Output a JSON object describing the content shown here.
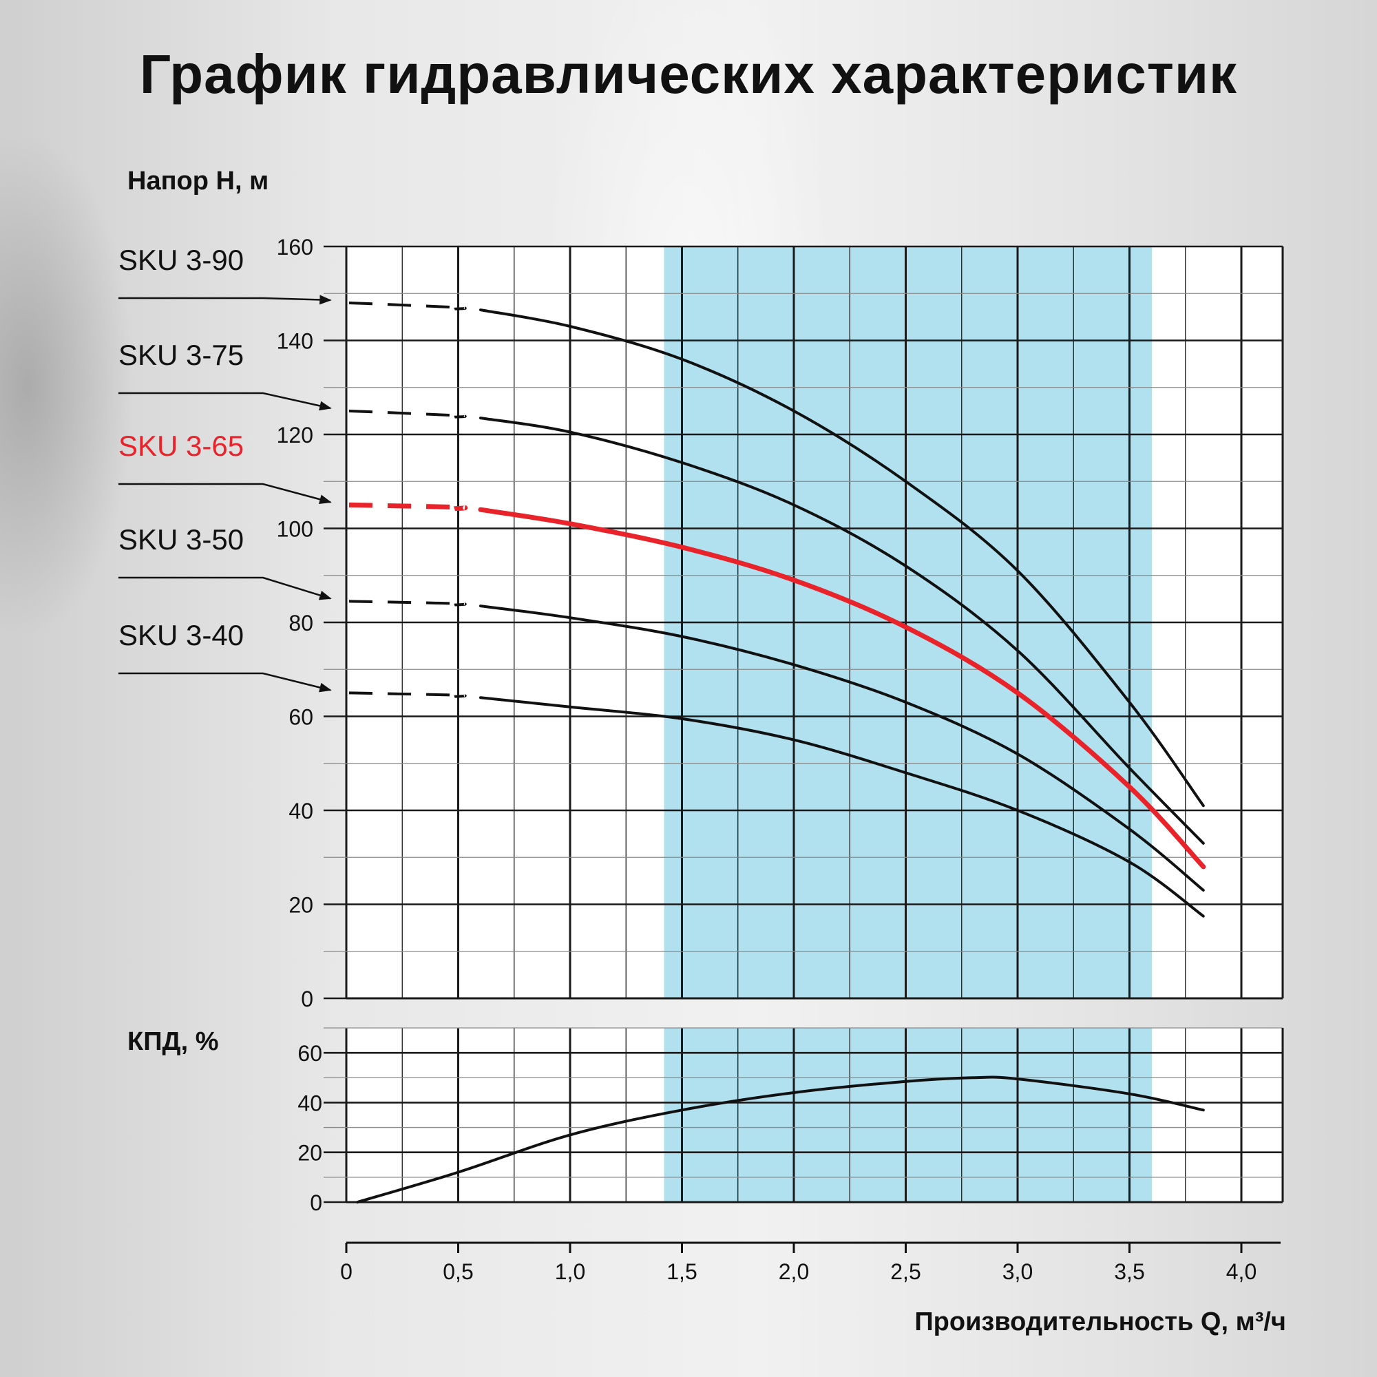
{
  "title": "График гидравлических характеристик",
  "colors": {
    "band": "#b1e0ef",
    "curve": "#111111",
    "highlight": "#e8232a",
    "grid": "#1a1a1a"
  },
  "chart_data": [
    {
      "type": "line",
      "title": "График гидравлических характеристик",
      "ylabel": "Напор H, м",
      "xlabel": "",
      "xlim": [
        0,
        4.2
      ],
      "ylim": [
        0,
        160
      ],
      "y_ticks": [
        "0",
        "20",
        "40",
        "60",
        "80",
        "100",
        "120",
        "140",
        "160"
      ],
      "grid": true,
      "shaded_range_x": [
        1.42,
        3.6
      ],
      "dashed_below_x": 0.6,
      "highlight_series": "SKU 3-65",
      "series": [
        {
          "name": "SKU 3-90",
          "x": [
            0,
            0.5,
            0.6,
            1.0,
            1.5,
            2.0,
            2.5,
            3.0,
            3.5,
            3.83
          ],
          "y": [
            148,
            147,
            146.5,
            143,
            136,
            125,
            110,
            91,
            63,
            41
          ]
        },
        {
          "name": "SKU 3-75",
          "x": [
            0,
            0.5,
            0.6,
            1.0,
            1.5,
            2.0,
            2.5,
            3.0,
            3.5,
            3.83
          ],
          "y": [
            125,
            124,
            123.5,
            120.5,
            114,
            105,
            92,
            74,
            49,
            33
          ]
        },
        {
          "name": "SKU 3-65",
          "x": [
            0,
            0.5,
            0.6,
            1.0,
            1.5,
            2.0,
            2.5,
            3.0,
            3.5,
            3.83
          ],
          "y": [
            105,
            104.5,
            104,
            101,
            96,
            89,
            79,
            65,
            45,
            28
          ]
        },
        {
          "name": "SKU 3-50",
          "x": [
            0,
            0.5,
            0.6,
            1.0,
            1.5,
            2.0,
            2.5,
            3.0,
            3.5,
            3.83
          ],
          "y": [
            84.5,
            84,
            83.5,
            81,
            77,
            71,
            63,
            52,
            36,
            23
          ]
        },
        {
          "name": "SKU 3-40",
          "x": [
            0,
            0.5,
            0.6,
            1.0,
            1.5,
            2.0,
            2.5,
            3.0,
            3.5,
            3.83
          ],
          "y": [
            65,
            64.5,
            64,
            62,
            59.5,
            55,
            48,
            40,
            29,
            17.5
          ]
        }
      ]
    },
    {
      "type": "line",
      "ylabel": "КПД, %",
      "xlabel": "Производительность Q, м³/ч",
      "xlim": [
        0,
        4.2
      ],
      "ylim": [
        0,
        70
      ],
      "y_ticks": [
        "0",
        "20",
        "40",
        "60"
      ],
      "x_ticks": [
        "0",
        "0,5",
        "1,0",
        "1,5",
        "2,0",
        "2,5",
        "3,0",
        "3,5",
        "4,0"
      ],
      "grid": true,
      "shaded_range_x": [
        1.42,
        3.6
      ],
      "series": [
        {
          "x": [
            0.05,
            0.5,
            1.0,
            1.5,
            2.0,
            2.5,
            2.8,
            3.0,
            3.5,
            3.83
          ],
          "y": [
            0,
            12,
            27,
            37,
            44,
            48.5,
            50,
            49.5,
            43.5,
            37
          ]
        }
      ]
    }
  ]
}
